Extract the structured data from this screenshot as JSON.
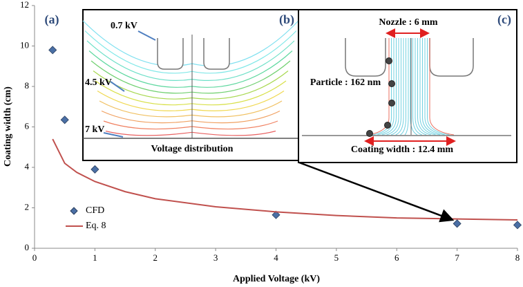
{
  "chart_data": {
    "type": "scatter",
    "panel_label": "(a)",
    "x_label": "Applied Voltage (kV)",
    "y_label": "Coating width (cm)",
    "xlim": [
      0,
      8
    ],
    "xticks": [
      0,
      1,
      2,
      3,
      4,
      5,
      6,
      7,
      8
    ],
    "ylim": [
      0,
      12
    ],
    "yticks": [
      0,
      2,
      4,
      6,
      8,
      10,
      12
    ],
    "series": [
      {
        "name": "CFD",
        "color": "#4a6fa5",
        "mark": "diamond",
        "x": [
          0.3,
          0.5,
          1,
          4,
          7,
          8
        ],
        "values": [
          9.8,
          6.35,
          3.9,
          1.65,
          1.22,
          1.15
        ]
      },
      {
        "name": "Eq. 8",
        "color": "#c0504d",
        "mark": "line",
        "x": [
          0.3,
          0.5,
          0.7,
          1,
          1.5,
          2,
          3,
          4,
          5,
          6,
          7,
          8
        ],
        "values": [
          5.4,
          4.2,
          3.75,
          3.3,
          2.8,
          2.45,
          2.05,
          1.8,
          1.62,
          1.5,
          1.45,
          1.4
        ]
      }
    ]
  },
  "insets": [
    {
      "panel_label": "(b)",
      "annotations": [
        "0.7 kV",
        "4.5 kV",
        "7 kV",
        "Voltage distribution"
      ]
    },
    {
      "panel_label": "(c)",
      "annotations": [
        "Nozzle : 6 mm",
        "Particle : 162 nm",
        "Coating width : 12.4 mm"
      ]
    }
  ]
}
